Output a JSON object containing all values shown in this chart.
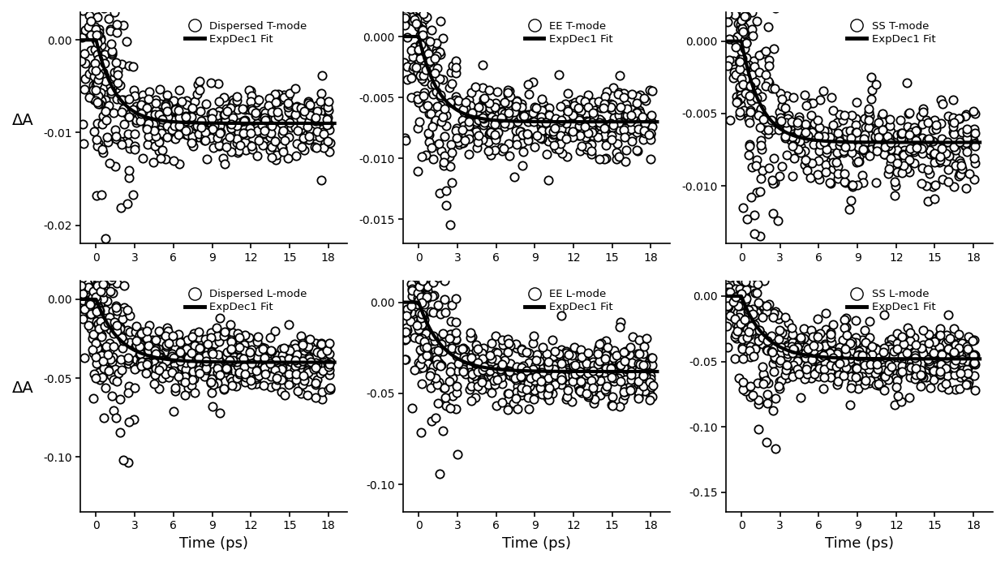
{
  "panels": [
    {
      "row": 0,
      "col": 0,
      "title": "Dispersed T-mode",
      "ylabel": "ΔA",
      "ylim": [
        -0.022,
        0.003
      ],
      "yticks": [
        0.0,
        -0.01,
        -0.02
      ],
      "ytick_labels": [
        "0.00",
        "-0.01",
        "-0.02"
      ],
      "asymptote": -0.009,
      "tau": 1.5,
      "noise_early": 0.006,
      "noise_late": 0.002,
      "n_scans": 12
    },
    {
      "row": 0,
      "col": 1,
      "title": "EE T-mode",
      "ylabel": "",
      "ylim": [
        -0.017,
        0.002
      ],
      "yticks": [
        0.0,
        -0.005,
        -0.01,
        -0.015
      ],
      "ytick_labels": [
        "0.000",
        "-0.005",
        "-0.010",
        "-0.015"
      ],
      "asymptote": -0.007,
      "tau": 1.5,
      "noise_early": 0.004,
      "noise_late": 0.0015,
      "n_scans": 12
    },
    {
      "row": 0,
      "col": 2,
      "title": "SS T-mode",
      "ylabel": "",
      "ylim": [
        -0.014,
        0.002
      ],
      "yticks": [
        0.0,
        -0.005,
        -0.01
      ],
      "ytick_labels": [
        "0.000",
        "-0.005",
        "-0.010"
      ],
      "asymptote": -0.007,
      "tau": 1.5,
      "noise_early": 0.004,
      "noise_late": 0.0015,
      "n_scans": 12
    },
    {
      "row": 1,
      "col": 0,
      "title": "Dispersed L-mode",
      "ylabel": "ΔA",
      "ylim": [
        -0.135,
        0.012
      ],
      "yticks": [
        0.0,
        -0.05,
        -0.1
      ],
      "ytick_labels": [
        "0.00",
        "-0.05",
        "-0.10"
      ],
      "asymptote": -0.04,
      "tau": 1.8,
      "noise_early": 0.028,
      "noise_late": 0.01,
      "n_scans": 14
    },
    {
      "row": 1,
      "col": 1,
      "title": "EE L-mode",
      "ylabel": "",
      "ylim": [
        -0.115,
        0.012
      ],
      "yticks": [
        0.0,
        -0.05,
        -0.1
      ],
      "ytick_labels": [
        "0.00",
        "-0.05",
        "-0.10"
      ],
      "asymptote": -0.038,
      "tau": 1.8,
      "noise_early": 0.025,
      "noise_late": 0.009,
      "n_scans": 14
    },
    {
      "row": 1,
      "col": 2,
      "title": "SS L-mode",
      "ylabel": "",
      "ylim": [
        -0.165,
        0.012
      ],
      "yticks": [
        0.0,
        -0.05,
        -0.1,
        -0.15
      ],
      "ytick_labels": [
        "0.00",
        "-0.05",
        "-0.10",
        "-0.15"
      ],
      "asymptote": -0.048,
      "tau": 1.8,
      "noise_early": 0.032,
      "noise_late": 0.012,
      "n_scans": 14
    }
  ],
  "xlim": [
    -1.2,
    19.5
  ],
  "xticks": [
    0,
    3,
    6,
    9,
    12,
    15,
    18
  ],
  "xlabel": "Time (ps)",
  "background_color": "#ffffff",
  "scatter_color": "white",
  "scatter_edgecolor": "black",
  "scatter_size": 55,
  "line_color": "black",
  "line_width": 3.0
}
